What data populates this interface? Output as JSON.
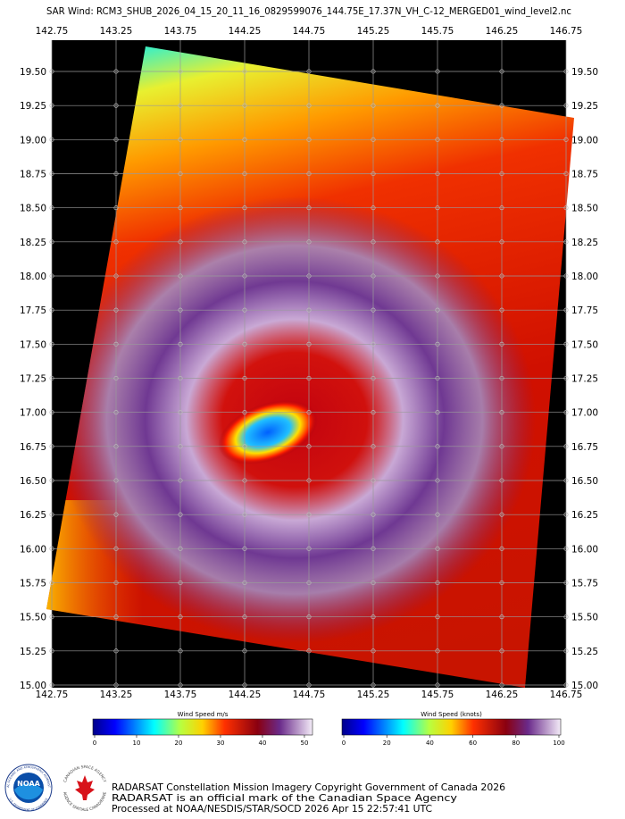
{
  "header": {
    "title": "SAR Wind: RCM3_SHUB_2026_04_15_20_11_16_0829599076_144.75E_17.37N_VH_C-12_MERGED01_wind_level2.nc"
  },
  "map": {
    "lon_labels": [
      "142.75",
      "143.25",
      "143.75",
      "144.25",
      "144.75",
      "145.25",
      "145.75",
      "146.25",
      "146.75"
    ],
    "lat_labels": [
      "19.50",
      "19.25",
      "19.00",
      "18.75",
      "18.50",
      "18.25",
      "18.00",
      "17.75",
      "17.50",
      "17.25",
      "17.00",
      "16.75",
      "16.50",
      "16.25",
      "16.00",
      "15.75",
      "15.50",
      "15.25",
      "15.00"
    ]
  },
  "colorbars": [
    {
      "title": "Wind Speed m/s",
      "lim": [
        0,
        51.5
      ],
      "ticks": [
        0,
        10,
        20,
        30,
        40,
        50
      ]
    },
    {
      "title": "Wind Speed (knots)",
      "lim": [
        0,
        100
      ],
      "ticks": [
        0,
        20,
        40,
        60,
        80,
        100
      ]
    }
  ],
  "logos": {
    "noaa": "NOAA",
    "noaa_top": "NATIONAL OCEANIC AND ATMOSPHERIC ADMINISTRATION",
    "noaa_bottom": "U.S. DEPARTMENT OF COMMERCE",
    "csa_top": "CANADIAN SPACE AGENCY",
    "csa_bottom": "AGENCE SPATIALE CANADIENNE"
  },
  "credits": [
    "RADARSAT Constellation Mission Imagery Copyright Government of Canada 2026",
    "RADARSAT is an official mark of the Canadian Space Agency",
    "Processed at NOAA/NESDIS/STAR/SOCD 2026 Apr 15 22:57:41 UTC"
  ]
}
